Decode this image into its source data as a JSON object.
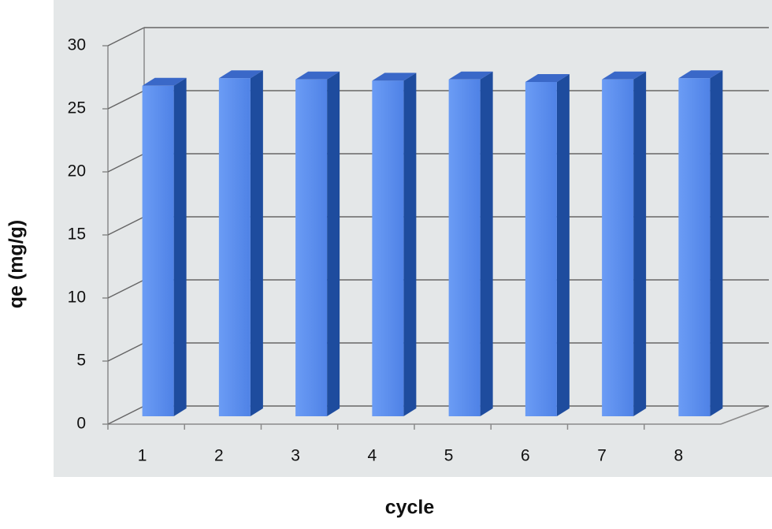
{
  "chart_data": {
    "type": "bar3d",
    "x_label": "cycle",
    "y_label": "qe (mg/g)",
    "categories": [
      "1",
      "2",
      "3",
      "4",
      "5",
      "6",
      "7",
      "8"
    ],
    "values": [
      26.2,
      26.8,
      26.7,
      26.6,
      26.7,
      26.5,
      26.7,
      26.8
    ],
    "color": "#5b8ef0",
    "ylim": [
      0,
      30
    ],
    "yticks": [
      0,
      5,
      10,
      15,
      20,
      25,
      30
    ],
    "grid": true
  }
}
